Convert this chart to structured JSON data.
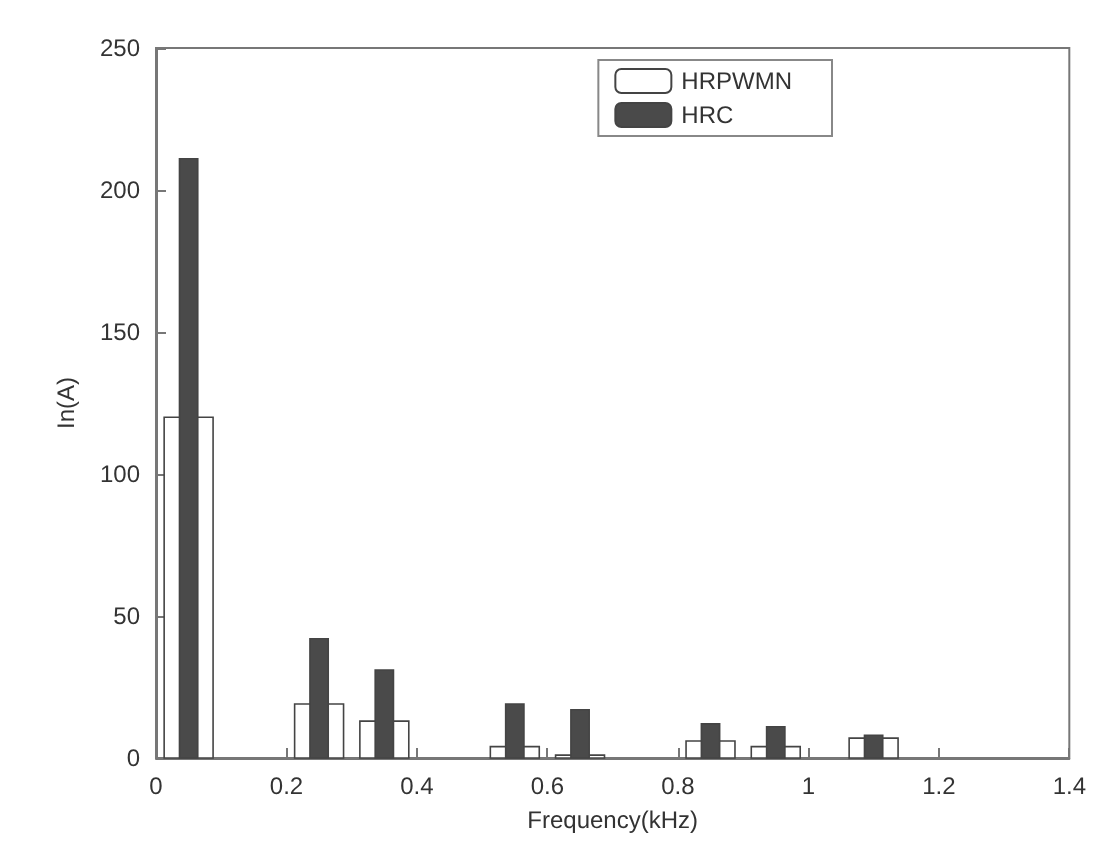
{
  "chart_data": {
    "type": "bar",
    "xlabel": "Frequency(kHz)",
    "ylabel": "In(A)",
    "x": [
      0.05,
      0.25,
      0.35,
      0.55,
      0.65,
      0.85,
      0.95,
      1.1
    ],
    "series": [
      {
        "name": "HRPWMN",
        "color": "#ffffff",
        "values": [
          120,
          19,
          13,
          4,
          1,
          6,
          4,
          7
        ]
      },
      {
        "name": "HRC",
        "color": "#4a4a4a",
        "values": [
          211,
          42,
          31,
          19,
          17,
          12,
          11,
          8
        ]
      }
    ],
    "xlim": [
      0,
      1.4
    ],
    "xticks": [
      0,
      0.2,
      0.4,
      0.6,
      0.8,
      1,
      1.2,
      1.4
    ],
    "ylim": [
      0,
      250
    ],
    "yticks": [
      0,
      50,
      100,
      150,
      200,
      250
    ],
    "grid": false,
    "legend": "top right"
  }
}
